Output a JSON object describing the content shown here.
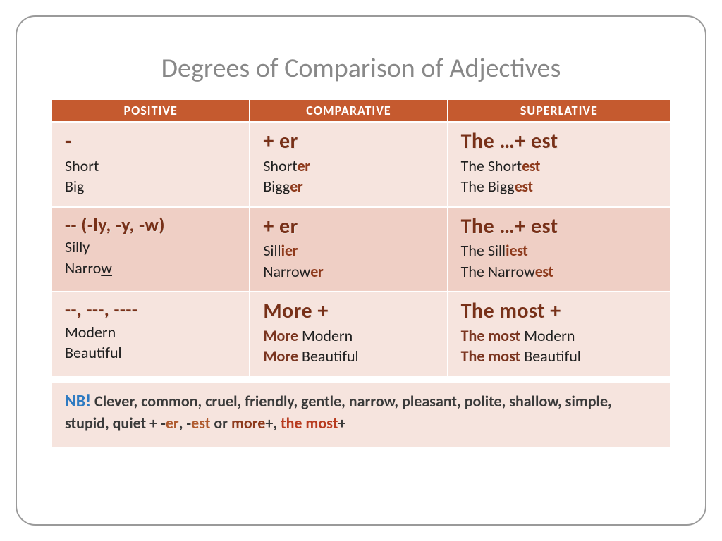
{
  "title": "Degrees of Comparison of Adjectives",
  "headers": {
    "c1": "POSITIVE",
    "c2": "COMPARATIVE",
    "c3": "SUPERLATIVE"
  },
  "rows": [
    {
      "bg": "rA",
      "pos_rule": "-",
      "pos_ex1": "Short",
      "pos_ex2": "Big",
      "cmp_rule": "+ er",
      "cmp_ex1_a": "Short",
      "cmp_ex1_b": "er",
      "cmp_ex2_a": "Bi",
      "cmp_ex2_mid": "gg",
      "cmp_ex2_b": "er",
      "sup_rule": "The …+ est",
      "sup_ex1_a": "The Short",
      "sup_ex1_b": "est",
      "sup_ex2_a": "The Bi",
      "sup_ex2_mid": "gg",
      "sup_ex2_b": "est"
    },
    {
      "bg": "rB",
      "pos_rule": "-- (-ly, -y, -w)",
      "pos_ex1": "Silly",
      "pos_ex2_a": "Narro",
      "pos_ex2_b": "w",
      "cmp_rule": "+ er",
      "cmp_ex1_a": "Sill",
      "cmp_ex1_mid": "i",
      "cmp_ex1_b": "er",
      "cmp_ex2_a": "Narrow",
      "cmp_ex2_b": "er",
      "sup_rule": "The …+ est",
      "sup_ex1_a": "The Sill",
      "sup_ex1_mid": "i",
      "sup_ex1_b": "est",
      "sup_ex2_a": "The Narrow",
      "sup_ex2_b": "est"
    },
    {
      "bg": "rA",
      "pos_rule": "--, ---, ----",
      "pos_ex1": "Modern",
      "pos_ex2": "Beautiful",
      "cmp_rule": "More +",
      "cmp_ex1_a": "More ",
      "cmp_ex1_b": "Modern",
      "cmp_ex2_a": "More ",
      "cmp_ex2_b": "Beautiful",
      "sup_rule": "The most +",
      "sup_ex1_a": "The most ",
      "sup_ex1_b": "Modern",
      "sup_ex2_a": "The most ",
      "sup_ex2_b": "Beautiful"
    }
  ],
  "note": {
    "nb": "NB!",
    "body1": " Clever, common, cruel, friendly, gentle, narrow, pleasant, polite, shallow, simple, stupid, quiet + -",
    "er": "er",
    "sep1": ", -",
    "est": "est",
    "sep2": " or ",
    "more": "more",
    "plus": "+, ",
    "the": "the most",
    "plus2": "+"
  },
  "colors": {
    "header_bg": "#c55a2f",
    "rowA": "#f6e4de",
    "rowB": "#efcfc5",
    "title": "#888"
  }
}
